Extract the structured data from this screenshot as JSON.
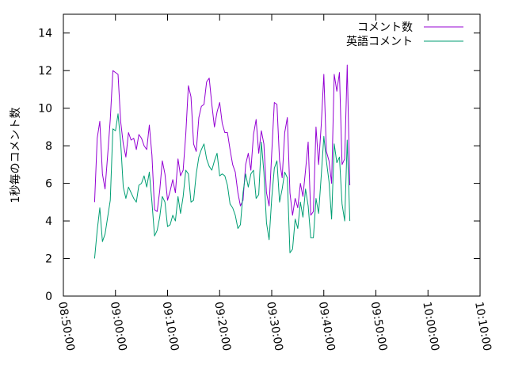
{
  "chart_data": {
    "type": "line",
    "xlabel": "",
    "ylabel": "1秒毎のコメント数",
    "xlim_minutes": [
      -10,
      70
    ],
    "ylim": [
      0,
      15
    ],
    "x_ticks": [
      "08:50:00",
      "09:00:00",
      "09:10:00",
      "09:20:00",
      "09:30:00",
      "09:40:00",
      "09:50:00",
      "10:00:00",
      "10:10:00"
    ],
    "y_ticks": [
      "0",
      "2",
      "4",
      "6",
      "8",
      "10",
      "12",
      "14"
    ],
    "grid": false,
    "legend_position": "top-right",
    "x_start": "08:56:00",
    "x_step_seconds": 30,
    "series": [
      {
        "name": "コメント数",
        "color": "#9400d3",
        "values": [
          5.0,
          8.4,
          9.3,
          6.5,
          5.7,
          7.5,
          9.4,
          12.0,
          11.9,
          11.8,
          9.3,
          8.1,
          7.4,
          8.7,
          8.3,
          8.4,
          7.8,
          8.6,
          8.4,
          8.0,
          7.8,
          9.1,
          7.5,
          4.6,
          4.5,
          5.6,
          7.2,
          6.5,
          5.1,
          5.6,
          6.2,
          5.5,
          7.3,
          6.4,
          6.7,
          8.6,
          11.2,
          10.6,
          8.1,
          7.7,
          9.5,
          10.1,
          10.2,
          11.4,
          11.6,
          10.2,
          9.0,
          9.8,
          10.3,
          9.2,
          8.7,
          8.7,
          7.8,
          7.0,
          6.6,
          5.5,
          4.8,
          5.1,
          7.0,
          7.6,
          6.7,
          8.6,
          9.4,
          7.6,
          8.8,
          8.1,
          5.5,
          4.8,
          7.6,
          10.3,
          10.2,
          7.2,
          6.3,
          8.7,
          9.5,
          5.5,
          4.3,
          5.2,
          4.7,
          6.0,
          5.3,
          6.7,
          8.2,
          4.3,
          4.5,
          9.0,
          7.0,
          9.1,
          11.8,
          7.7,
          7.2,
          6.0,
          11.8,
          10.9,
          11.9,
          7.0,
          7.3,
          12.3,
          5.9
        ]
      },
      {
        "name": "英語コメント",
        "color": "#009e73",
        "values": [
          2.0,
          3.5,
          4.7,
          2.9,
          3.3,
          4.2,
          5.1,
          8.9,
          8.8,
          9.7,
          8.2,
          5.8,
          5.2,
          5.8,
          5.5,
          5.2,
          5.0,
          5.9,
          6.0,
          6.4,
          5.8,
          6.6,
          5.0,
          3.2,
          3.5,
          4.2,
          5.3,
          5.0,
          3.7,
          3.8,
          4.3,
          4.0,
          5.3,
          4.4,
          5.3,
          6.7,
          6.5,
          5.0,
          5.1,
          6.5,
          7.4,
          7.8,
          8.1,
          7.3,
          6.9,
          6.7,
          7.2,
          7.6,
          6.4,
          6.5,
          6.4,
          5.9,
          4.9,
          4.7,
          4.3,
          3.6,
          3.8,
          5.5,
          6.5,
          5.8,
          6.5,
          6.7,
          5.2,
          5.4,
          8.2,
          6.6,
          3.9,
          3.0,
          5.2,
          6.8,
          7.2,
          5.0,
          5.7,
          6.6,
          6.3,
          2.3,
          2.5,
          4.1,
          3.6,
          5.0,
          4.2,
          5.7,
          4.8,
          3.1,
          3.1,
          5.2,
          4.4,
          6.4,
          8.5,
          7.2,
          6.1,
          4.1,
          8.1,
          7.1,
          7.4,
          4.9,
          4.0,
          8.3,
          4.0
        ]
      }
    ]
  }
}
